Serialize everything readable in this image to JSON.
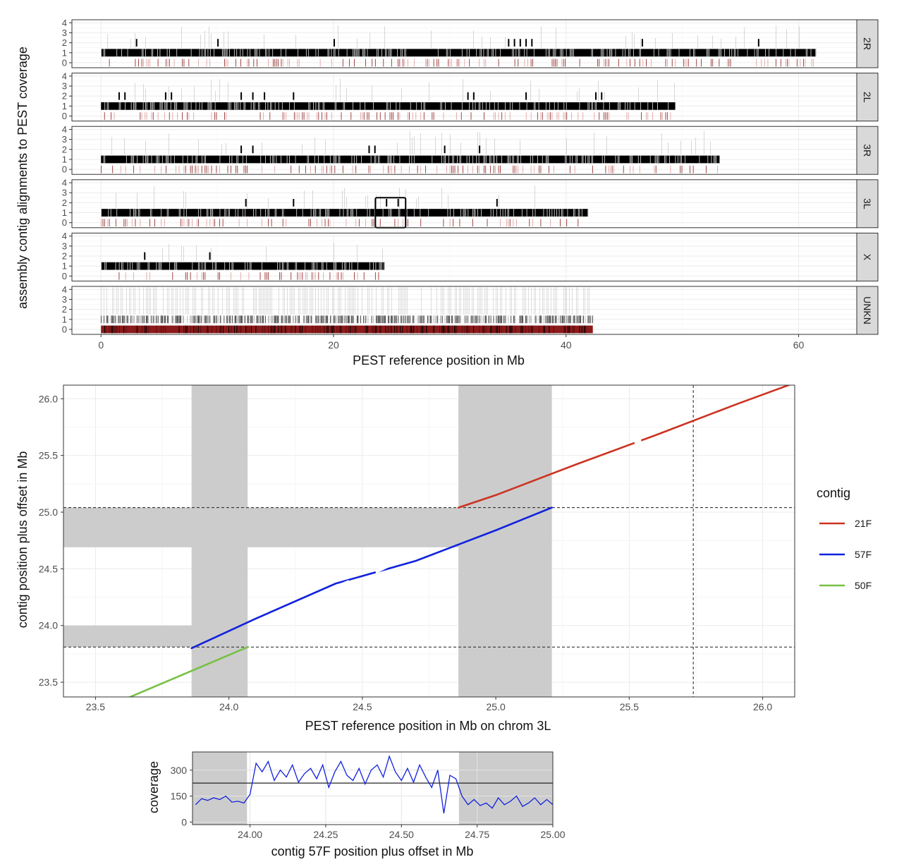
{
  "colors": {
    "cov_bar": "#000000",
    "zero_bar": "#8b1a1a",
    "c21F": "#cc3322",
    "c57F": "#1122dd",
    "c50F": "#77c144",
    "shade": "#cccccc",
    "strip_bg": "#d9d9d9"
  },
  "chart_data": [
    {
      "type": "bar",
      "title": "",
      "xlabel": "PEST reference position in Mb",
      "ylabel": "assembly contig alignments to PEST coverage",
      "xlim": [
        -2.5,
        65
      ],
      "ylim": [
        -0.5,
        4.3
      ],
      "x_ticks": [
        0,
        20,
        40,
        60
      ],
      "x_tick_labels": [
        "0",
        "20",
        "40",
        "60"
      ],
      "y_ticks": [
        0,
        1,
        2,
        3,
        4
      ],
      "y_tick_labels": [
        "0",
        "1",
        "2",
        "3",
        "4"
      ],
      "grid": true,
      "facets": [
        {
          "name": "2R",
          "length_mb": 61.5,
          "high_coverage_mb": [
            3,
            10,
            20,
            35,
            35.5,
            36,
            36.5,
            37,
            46.5,
            56.5
          ]
        },
        {
          "name": "2L",
          "length_mb": 49.4,
          "high_coverage_mb": [
            1.5,
            2,
            5.5,
            6,
            12,
            13,
            14,
            16.5,
            31.5,
            32,
            36.5,
            42.5,
            43
          ]
        },
        {
          "name": "3R",
          "length_mb": 53.2,
          "high_coverage_mb": [
            12,
            13,
            23,
            23.5,
            29.5,
            32.5
          ]
        },
        {
          "name": "3L",
          "length_mb": 41.9,
          "high_coverage_mb": [
            12.4,
            16.5,
            24.5,
            25.5,
            34
          ]
        },
        {
          "name": "X",
          "length_mb": 24.4,
          "high_coverage_mb": [
            3.7,
            9.3
          ]
        },
        {
          "name": "UNKN",
          "length_mb": 42.3,
          "high_coverage_mb": []
        }
      ],
      "highlight_box": {
        "chrom": "3L",
        "x_range_mb": [
          23.6,
          26.2
        ],
        "y_range": [
          -0.5,
          2.5
        ]
      }
    },
    {
      "type": "line",
      "title": "",
      "xlabel": "PEST reference position in Mb on chrom 3L",
      "ylabel": "contig position plus offset in Mb",
      "xlim": [
        23.38,
        26.12
      ],
      "ylim": [
        23.37,
        26.12
      ],
      "x_ticks": [
        23.5,
        24.0,
        24.5,
        25.0,
        25.5,
        26.0
      ],
      "x_tick_labels": [
        "23.5",
        "24.0",
        "24.5",
        "25.0",
        "25.5",
        "26.0"
      ],
      "y_ticks": [
        23.5,
        24.0,
        24.5,
        25.0,
        25.5,
        26.0
      ],
      "y_tick_labels": [
        "23.5",
        "24.0",
        "24.5",
        "25.0",
        "25.5",
        "26.0"
      ],
      "legend_title": "contig",
      "legend_position": "right",
      "series": [
        {
          "name": "21F",
          "color": "#cc3322",
          "x": [
            24.86,
            25.0,
            25.3,
            25.6,
            25.9,
            26.12
          ],
          "y": [
            25.04,
            25.15,
            25.42,
            25.68,
            25.95,
            26.14
          ]
        },
        {
          "name": "57F",
          "color": "#1122dd",
          "x": [
            23.86,
            24.1,
            24.4,
            24.7,
            25.0,
            25.21
          ],
          "y": [
            23.8,
            24.06,
            24.37,
            24.57,
            24.84,
            25.04
          ]
        },
        {
          "name": "50F",
          "color": "#77c144",
          "x": [
            23.62,
            23.8,
            24.07
          ],
          "y": [
            23.36,
            23.54,
            23.81
          ]
        }
      ],
      "dashed_hlines": [
        23.81,
        25.04
      ],
      "dashed_vlines": [
        25.74
      ],
      "shaded_x_ranges": [
        [
          23.86,
          24.07
        ],
        [
          24.86,
          25.21
        ]
      ],
      "shaded_y_ranges": [
        [
          23.81,
          24.0
        ],
        [
          24.69,
          25.04
        ]
      ]
    },
    {
      "type": "line",
      "title": "",
      "xlabel": "contig 57F position plus offset in Mb",
      "ylabel": "coverage",
      "xlim": [
        23.81,
        25.0
      ],
      "ylim": [
        -15,
        405
      ],
      "x_ticks": [
        24.0,
        24.25,
        24.5,
        24.75,
        25.0
      ],
      "x_tick_labels": [
        "24.00",
        "24.25",
        "24.50",
        "24.75",
        "25.00"
      ],
      "y_ticks": [
        0,
        150,
        300
      ],
      "y_tick_labels": [
        "0",
        "150",
        "300"
      ],
      "mean_line": 225,
      "shaded_x_ranges": [
        [
          23.81,
          23.99
        ],
        [
          24.69,
          25.0
        ]
      ],
      "series": [
        {
          "name": "57F",
          "color": "#1122dd",
          "x": [
            23.82,
            23.84,
            23.86,
            23.88,
            23.9,
            23.92,
            23.94,
            23.96,
            23.98,
            24.0,
            24.02,
            24.04,
            24.06,
            24.08,
            24.1,
            24.12,
            24.14,
            24.16,
            24.18,
            24.2,
            24.22,
            24.24,
            24.26,
            24.28,
            24.3,
            24.32,
            24.34,
            24.36,
            24.38,
            24.4,
            24.42,
            24.44,
            24.46,
            24.48,
            24.5,
            24.52,
            24.54,
            24.56,
            24.58,
            24.6,
            24.62,
            24.64,
            24.66,
            24.68,
            24.7,
            24.72,
            24.74,
            24.76,
            24.78,
            24.8,
            24.82,
            24.84,
            24.86,
            24.88,
            24.9,
            24.92,
            24.94,
            24.96,
            24.98,
            25.0
          ],
          "y": [
            100,
            135,
            125,
            140,
            130,
            150,
            115,
            120,
            110,
            160,
            340,
            290,
            350,
            240,
            300,
            260,
            330,
            230,
            280,
            310,
            250,
            330,
            200,
            290,
            350,
            270,
            240,
            310,
            220,
            300,
            330,
            260,
            380,
            290,
            240,
            310,
            230,
            330,
            260,
            200,
            300,
            50,
            270,
            250,
            150,
            100,
            130,
            95,
            110,
            80,
            140,
            100,
            120,
            150,
            90,
            110,
            140,
            100,
            130,
            100
          ]
        }
      ]
    }
  ]
}
